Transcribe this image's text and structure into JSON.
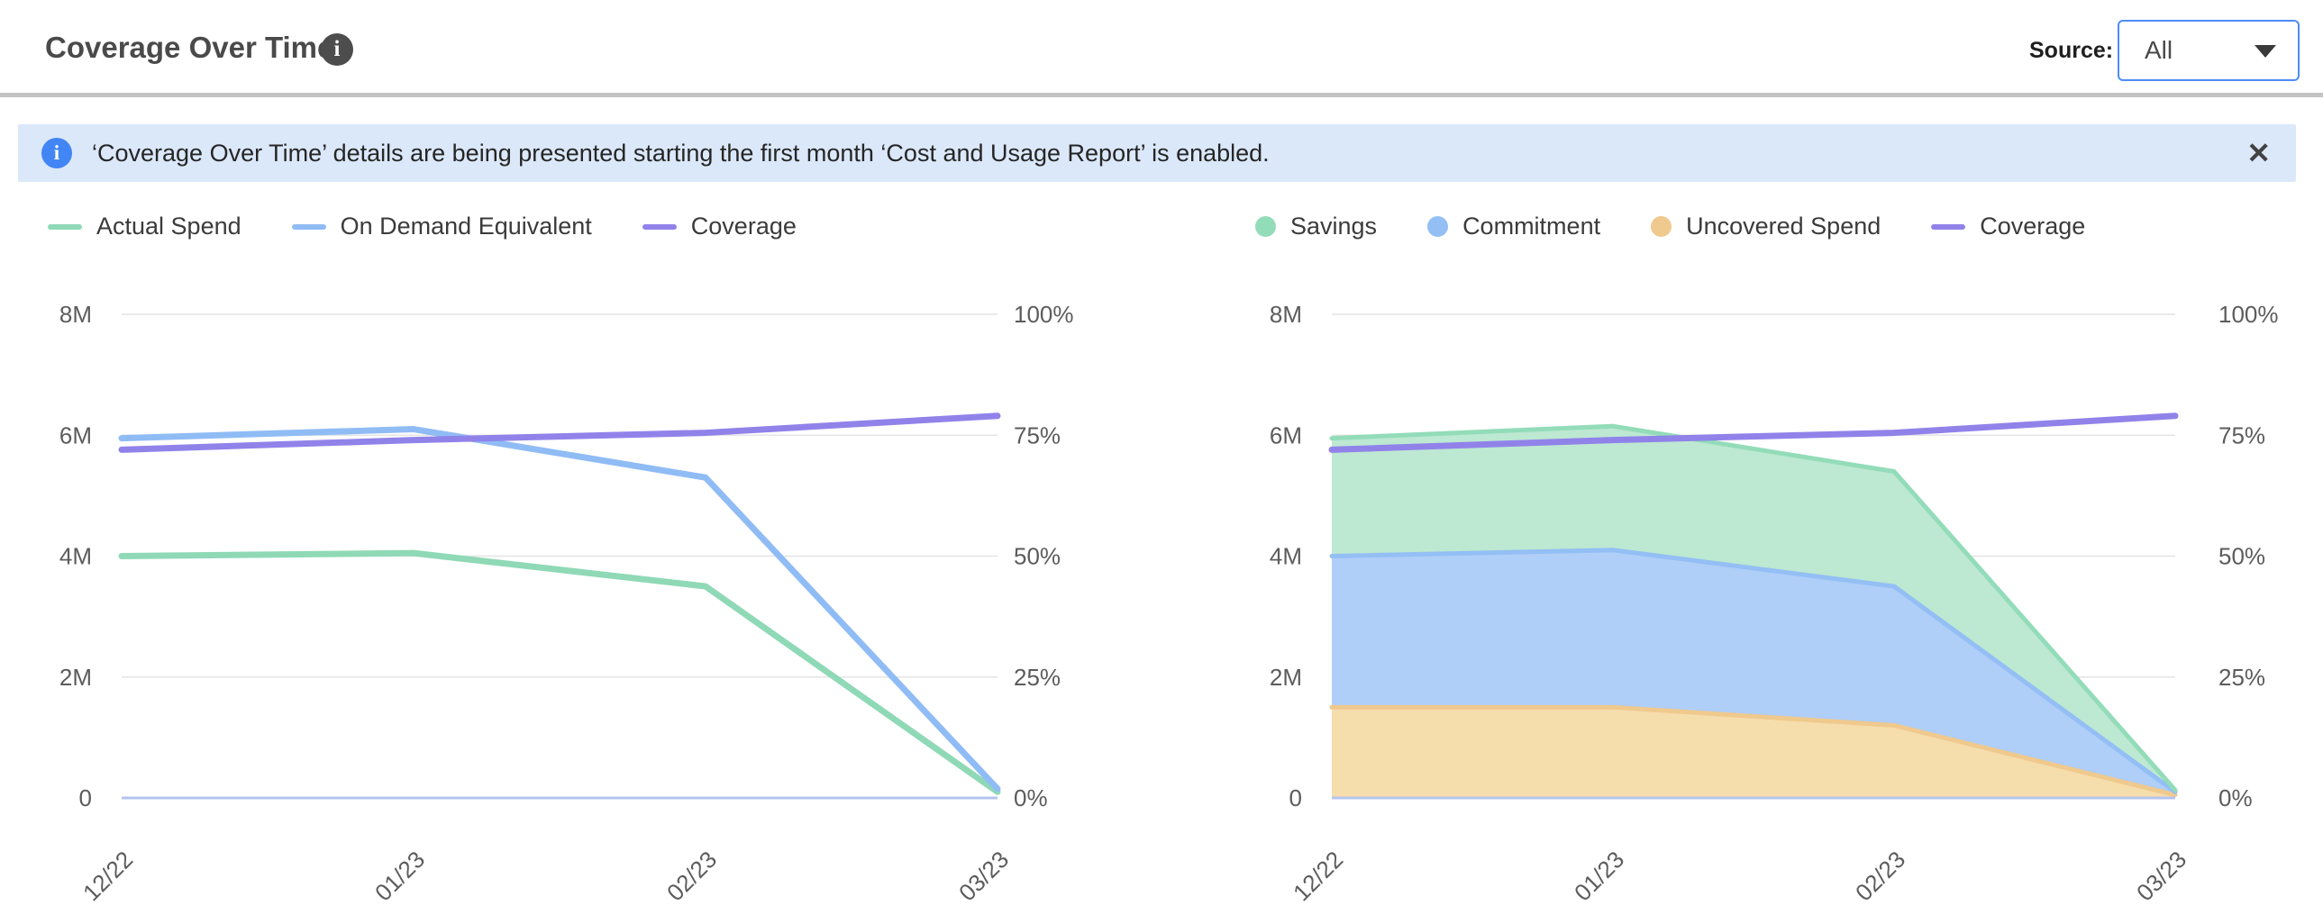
{
  "header": {
    "title": "Coverage Over Time",
    "source_label": "Source:",
    "source_value": "All"
  },
  "banner": {
    "text": "‘Coverage Over Time’ details are being presented starting the first month ‘Cost and Usage Report’ is enabled.",
    "close_glyph": "✕"
  },
  "colors": {
    "accent_blue": "#4c8df6",
    "banner_bg": "#dbe8fa",
    "banner_icon": "#4285f4",
    "grid": "#e4e4e4",
    "axis_baseline": "#b5c4ee",
    "axis_text": "#5c5c5c"
  },
  "chart_data": [
    {
      "type": "line",
      "x": [
        "12/22",
        "01/23",
        "02/23",
        "03/23"
      ],
      "left_axis": {
        "label": "spend",
        "max": 8,
        "ticks": [
          "0",
          "2M",
          "4M",
          "6M",
          "8M"
        ]
      },
      "right_axis": {
        "label": "coverage",
        "max": 100,
        "ticks": [
          "0%",
          "25%",
          "50%",
          "75%",
          "100%"
        ]
      },
      "grid_color": "#e4e4e4",
      "axis_line_color": "#b5c4ee",
      "series": [
        {
          "name": "Actual Spend",
          "axis": "left",
          "color": "#8fd9b6",
          "values": [
            4.0,
            4.05,
            3.5,
            0.1
          ]
        },
        {
          "name": "On Demand Equivalent",
          "axis": "left",
          "color": "#90bcf5",
          "values": [
            5.95,
            6.1,
            5.3,
            0.15
          ]
        },
        {
          "name": "Coverage",
          "axis": "right",
          "color": "#9182ea",
          "values": [
            72,
            74,
            75.5,
            79
          ]
        }
      ],
      "legend_order": [
        "Actual Spend",
        "On Demand Equivalent",
        "Coverage"
      ],
      "legend_position": "top-left",
      "grid": true
    },
    {
      "type": "area",
      "stacked": true,
      "x": [
        "12/22",
        "01/23",
        "02/23",
        "03/23"
      ],
      "left_axis": {
        "label": "spend",
        "max": 8,
        "ticks": [
          "0",
          "2M",
          "4M",
          "6M",
          "8M"
        ]
      },
      "right_axis": {
        "label": "coverage",
        "max": 100,
        "ticks": [
          "0%",
          "25%",
          "50%",
          "75%",
          "100%"
        ]
      },
      "grid_color": "#e4e4e4",
      "axis_line_color": "#b5c4ee",
      "areas": [
        {
          "name": "Uncovered Spend",
          "color": "#efc98d",
          "fill": "#f6ddac",
          "values": [
            1.5,
            1.5,
            1.2,
            0.05
          ]
        },
        {
          "name": "Commitment",
          "color": "#93bff5",
          "fill": "#afcef8",
          "values": [
            2.5,
            2.6,
            2.3,
            0.05
          ]
        },
        {
          "name": "Savings",
          "color": "#93dcb9",
          "fill": "#bde8d2",
          "values": [
            1.95,
            2.05,
            1.9,
            0.03
          ]
        }
      ],
      "series": [
        {
          "name": "Coverage",
          "axis": "right",
          "color": "#9182ea",
          "values": [
            72,
            74,
            75.5,
            79
          ]
        }
      ],
      "legend_order": [
        "Savings",
        "Commitment",
        "Uncovered Spend",
        "Coverage"
      ],
      "legend_position": "top-left",
      "grid": true
    }
  ]
}
